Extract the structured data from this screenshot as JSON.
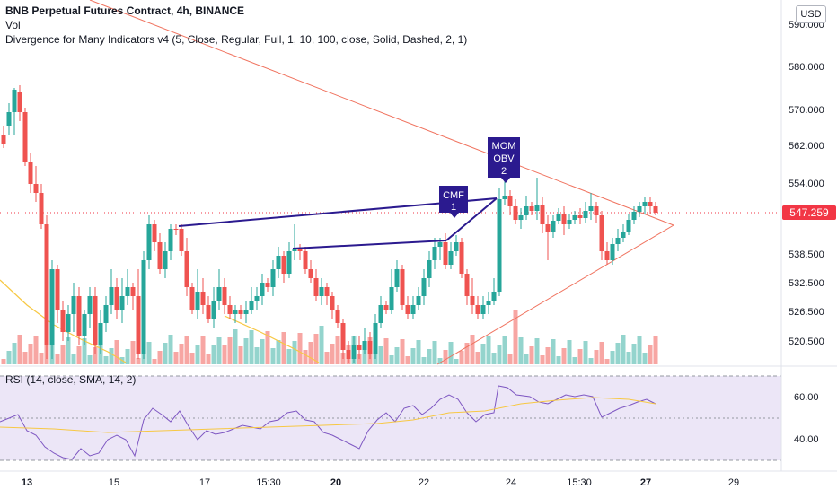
{
  "legend": {
    "title": "BNB Perpetual Futures Contract, 4h, BINANCE",
    "vol": "Vol",
    "indicator": "Divergence for Many Indicators v4 (5, Close, Regular, Full, 1, 10, 100, close, Solid, Dashed, 2, 1)"
  },
  "currency_button": "USD",
  "current_price": "547.259",
  "price_axis": [
    "590.000",
    "580.000",
    "570.000",
    "562.000",
    "554.000",
    "538.500",
    "532.500",
    "526.500",
    "520.500"
  ],
  "rsi": {
    "legend": "RSI (14, close, SMA, 14, 2)",
    "axis": [
      "60.00",
      "40.00"
    ],
    "band_upper": 70,
    "band_mid": 50,
    "band_lower": 30
  },
  "time_axis": [
    "13",
    "15",
    "17",
    "15:30",
    "20",
    "22",
    "24",
    "15:30",
    "27",
    "29"
  ],
  "divergence_labels": [
    {
      "lines": [
        "CMF",
        "1"
      ]
    },
    {
      "lines": [
        "MOM",
        "OBV",
        "2"
      ]
    }
  ],
  "colors": {
    "up": "#26a69a",
    "down": "#ef5350",
    "up_vol": "#94d4cd",
    "down_vol": "#f7a6a3",
    "divergence": "#2b1a8f",
    "trendline": "#f0735f",
    "rsi_line": "#7e57c2",
    "rsi_sma": "#f7c843",
    "rsi_band": "#ece6f7",
    "price_tag": "#f23645"
  }
}
